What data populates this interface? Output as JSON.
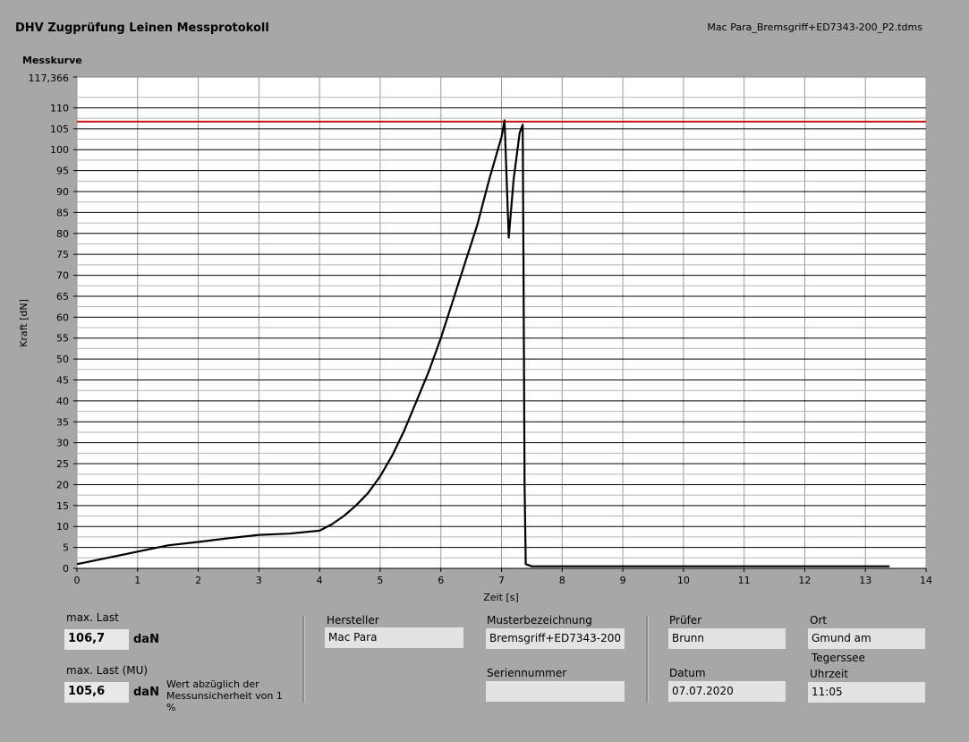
{
  "header": {
    "title": "DHV Zugprüfung Leinen Messprotokoll",
    "filename": "Mac Para_Bremsgriff+ED7343-200_P2.tdms",
    "chart_label": "Messkurve"
  },
  "chart_data": {
    "type": "line",
    "xlabel": "Zeit [s]",
    "ylabel": "Kraft [dN]",
    "xlim": [
      0,
      14
    ],
    "ylim": [
      0,
      117.366
    ],
    "x_ticks": [
      "0",
      "1",
      "2",
      "3",
      "4",
      "5",
      "6",
      "7",
      "8",
      "9",
      "10",
      "11",
      "12",
      "13",
      "14"
    ],
    "y_ticks": [
      "0",
      "5",
      "10",
      "15",
      "20",
      "25",
      "30",
      "35",
      "40",
      "45",
      "50",
      "55",
      "60",
      "65",
      "70",
      "75",
      "80",
      "85",
      "90",
      "95",
      "100",
      "105",
      "110"
    ],
    "y_top_label": "117,366",
    "grid": true,
    "reference_line": {
      "y": 106.7,
      "color": "#cc1111"
    },
    "series": [
      {
        "color": "#000000",
        "x": [
          0,
          0.5,
          1,
          1.5,
          2,
          2.5,
          3,
          3.5,
          4,
          4.2,
          4.4,
          4.6,
          4.8,
          5,
          5.2,
          5.4,
          5.6,
          5.8,
          6,
          6.2,
          6.4,
          6.6,
          6.8,
          7,
          7.05,
          7.08,
          7.12,
          7.2,
          7.3,
          7.35,
          7.36,
          7.38,
          7.4,
          7.5,
          8,
          9,
          10,
          11,
          12,
          13,
          13.4
        ],
        "y": [
          1,
          2.5,
          4,
          5.5,
          6.3,
          7.2,
          8,
          8.3,
          9,
          10.5,
          12.5,
          15,
          18,
          22,
          27,
          33,
          40,
          47,
          55,
          64,
          73,
          82,
          93,
          103,
          107,
          95,
          79,
          93,
          104,
          106,
          80,
          20,
          1,
          0.5,
          0.5,
          0.5,
          0.5,
          0.5,
          0.5,
          0.5,
          0.5
        ]
      }
    ]
  },
  "footer": {
    "max_last_label": "max. Last",
    "max_last_value": "106,7",
    "max_last_unit": "daN",
    "max_last_mu_label": "max. Last (MU)",
    "max_last_mu_value": "105,6",
    "max_last_mu_unit": "daN",
    "mu_note": "Wert abzüglich der Messunsicherheit von 1 %",
    "hersteller_label": "Hersteller",
    "hersteller_value": "Mac Para",
    "muster_label": "Musterbezeichnung",
    "muster_value": "Bremsgriff+ED7343-200",
    "serien_label": "Seriennummer",
    "serien_value": "",
    "pruefer_label": "Prüfer",
    "pruefer_value": "Brunn",
    "datum_label": "Datum",
    "datum_value": "07.07.2020",
    "ort_label": "Ort",
    "ort_value": "Gmund am Tegerssee",
    "uhrzeit_label": "Uhrzeit",
    "uhrzeit_value": "11:05"
  }
}
